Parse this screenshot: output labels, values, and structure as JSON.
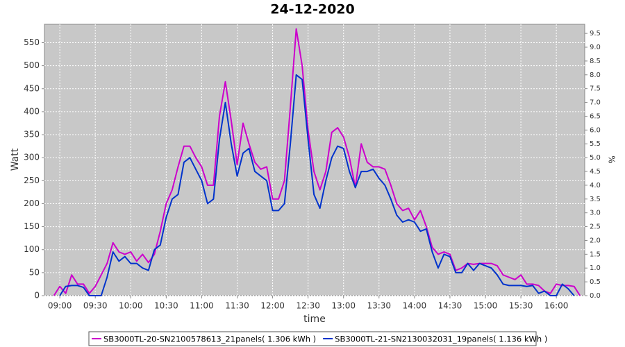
{
  "chart_data": {
    "type": "line",
    "title": "24-12-2020",
    "xlabel": "time",
    "ylabel": "Watt",
    "y2label": "%",
    "x": [
      "08:55",
      "09:00",
      "09:05",
      "09:10",
      "09:15",
      "09:20",
      "09:25",
      "09:30",
      "09:35",
      "09:40",
      "09:45",
      "09:50",
      "09:55",
      "10:00",
      "10:05",
      "10:10",
      "10:15",
      "10:20",
      "10:25",
      "10:30",
      "10:35",
      "10:40",
      "10:45",
      "10:50",
      "10:55",
      "11:00",
      "11:05",
      "11:10",
      "11:15",
      "11:20",
      "11:25",
      "11:30",
      "11:35",
      "11:40",
      "11:45",
      "11:50",
      "11:55",
      "12:00",
      "12:05",
      "12:10",
      "12:15",
      "12:20",
      "12:25",
      "12:30",
      "12:35",
      "12:40",
      "12:45",
      "12:50",
      "12:55",
      "13:00",
      "13:05",
      "13:10",
      "13:15",
      "13:20",
      "13:25",
      "13:30",
      "13:35",
      "13:40",
      "13:45",
      "13:50",
      "13:55",
      "14:00",
      "14:05",
      "14:10",
      "14:15",
      "14:20",
      "14:25",
      "14:30",
      "14:35",
      "14:40",
      "14:45",
      "14:50",
      "14:55",
      "15:00",
      "15:05",
      "15:10",
      "15:15",
      "15:20",
      "15:25",
      "15:30",
      "15:35",
      "15:40",
      "15:45",
      "15:50",
      "15:55",
      "16:00",
      "16:05",
      "16:10",
      "16:15",
      "16:20"
    ],
    "series": [
      {
        "name": "SB3000TL-20-SN2100578613_21panels( 1.306 kWh )",
        "color": "#cc00cc",
        "values": [
          0,
          20,
          5,
          45,
          25,
          25,
          5,
          20,
          45,
          70,
          115,
          95,
          90,
          95,
          75,
          90,
          72,
          90,
          140,
          200,
          230,
          280,
          325,
          325,
          300,
          280,
          240,
          240,
          390,
          465,
          380,
          285,
          375,
          330,
          290,
          275,
          280,
          210,
          210,
          250,
          410,
          580,
          500,
          360,
          270,
          230,
          270,
          355,
          365,
          345,
          300,
          235,
          330,
          290,
          280,
          280,
          275,
          240,
          200,
          185,
          190,
          165,
          185,
          150,
          105,
          90,
          95,
          90,
          55,
          60,
          70,
          68,
          70,
          70,
          70,
          65,
          45,
          40,
          35,
          45,
          25,
          25,
          22,
          10,
          5,
          25,
          22,
          22,
          20,
          0
        ]
      },
      {
        "name": "SB3000TL-21-SN2130032031_19panels( 1.136 kWh )",
        "color": "#0033cc",
        "values": [
          null,
          0,
          20,
          22,
          22,
          18,
          0,
          0,
          0,
          40,
          95,
          75,
          85,
          70,
          70,
          60,
          55,
          100,
          110,
          170,
          210,
          220,
          290,
          300,
          275,
          250,
          200,
          210,
          340,
          420,
          330,
          260,
          310,
          320,
          270,
          260,
          250,
          185,
          185,
          200,
          330,
          480,
          470,
          340,
          220,
          190,
          250,
          300,
          325,
          320,
          270,
          235,
          270,
          270,
          275,
          255,
          240,
          210,
          175,
          160,
          165,
          160,
          140,
          145,
          95,
          60,
          90,
          85,
          50,
          50,
          70,
          55,
          70,
          65,
          60,
          45,
          25,
          22,
          22,
          22,
          20,
          22,
          5,
          10,
          0,
          0,
          25,
          15,
          0,
          null
        ]
      }
    ],
    "xlim": [
      "08:47",
      "16:24"
    ],
    "xticks": [
      "09:00",
      "09:30",
      "10:00",
      "10:30",
      "11:00",
      "11:30",
      "12:00",
      "12:30",
      "13:00",
      "13:30",
      "14:00",
      "14:30",
      "15:00",
      "15:30",
      "16:00"
    ],
    "ylim": [
      0,
      590
    ],
    "yticks": [
      0,
      50,
      100,
      150,
      200,
      250,
      300,
      350,
      400,
      450,
      500,
      550
    ],
    "y2lim": [
      0,
      9.83
    ],
    "y2ticks": [
      {
        "value": 0,
        "label": "0.0"
      },
      0.5,
      {
        "value": 1,
        "label": "1.0"
      },
      1.5,
      {
        "value": 2,
        "label": "2.0"
      },
      2.5,
      {
        "value": 3,
        "label": "3.0"
      },
      3.5,
      {
        "value": 4,
        "label": "4.0"
      },
      4.5,
      {
        "value": 5,
        "label": "5.0"
      },
      5.5,
      {
        "value": 6,
        "label": "6.0"
      },
      6.5,
      {
        "value": 7,
        "label": "7.0"
      },
      7.5,
      {
        "value": 8,
        "label": "8.0"
      },
      8.5,
      {
        "value": 9,
        "label": "9.0"
      },
      9.5
    ],
    "grid": true,
    "legend": "bottom"
  }
}
